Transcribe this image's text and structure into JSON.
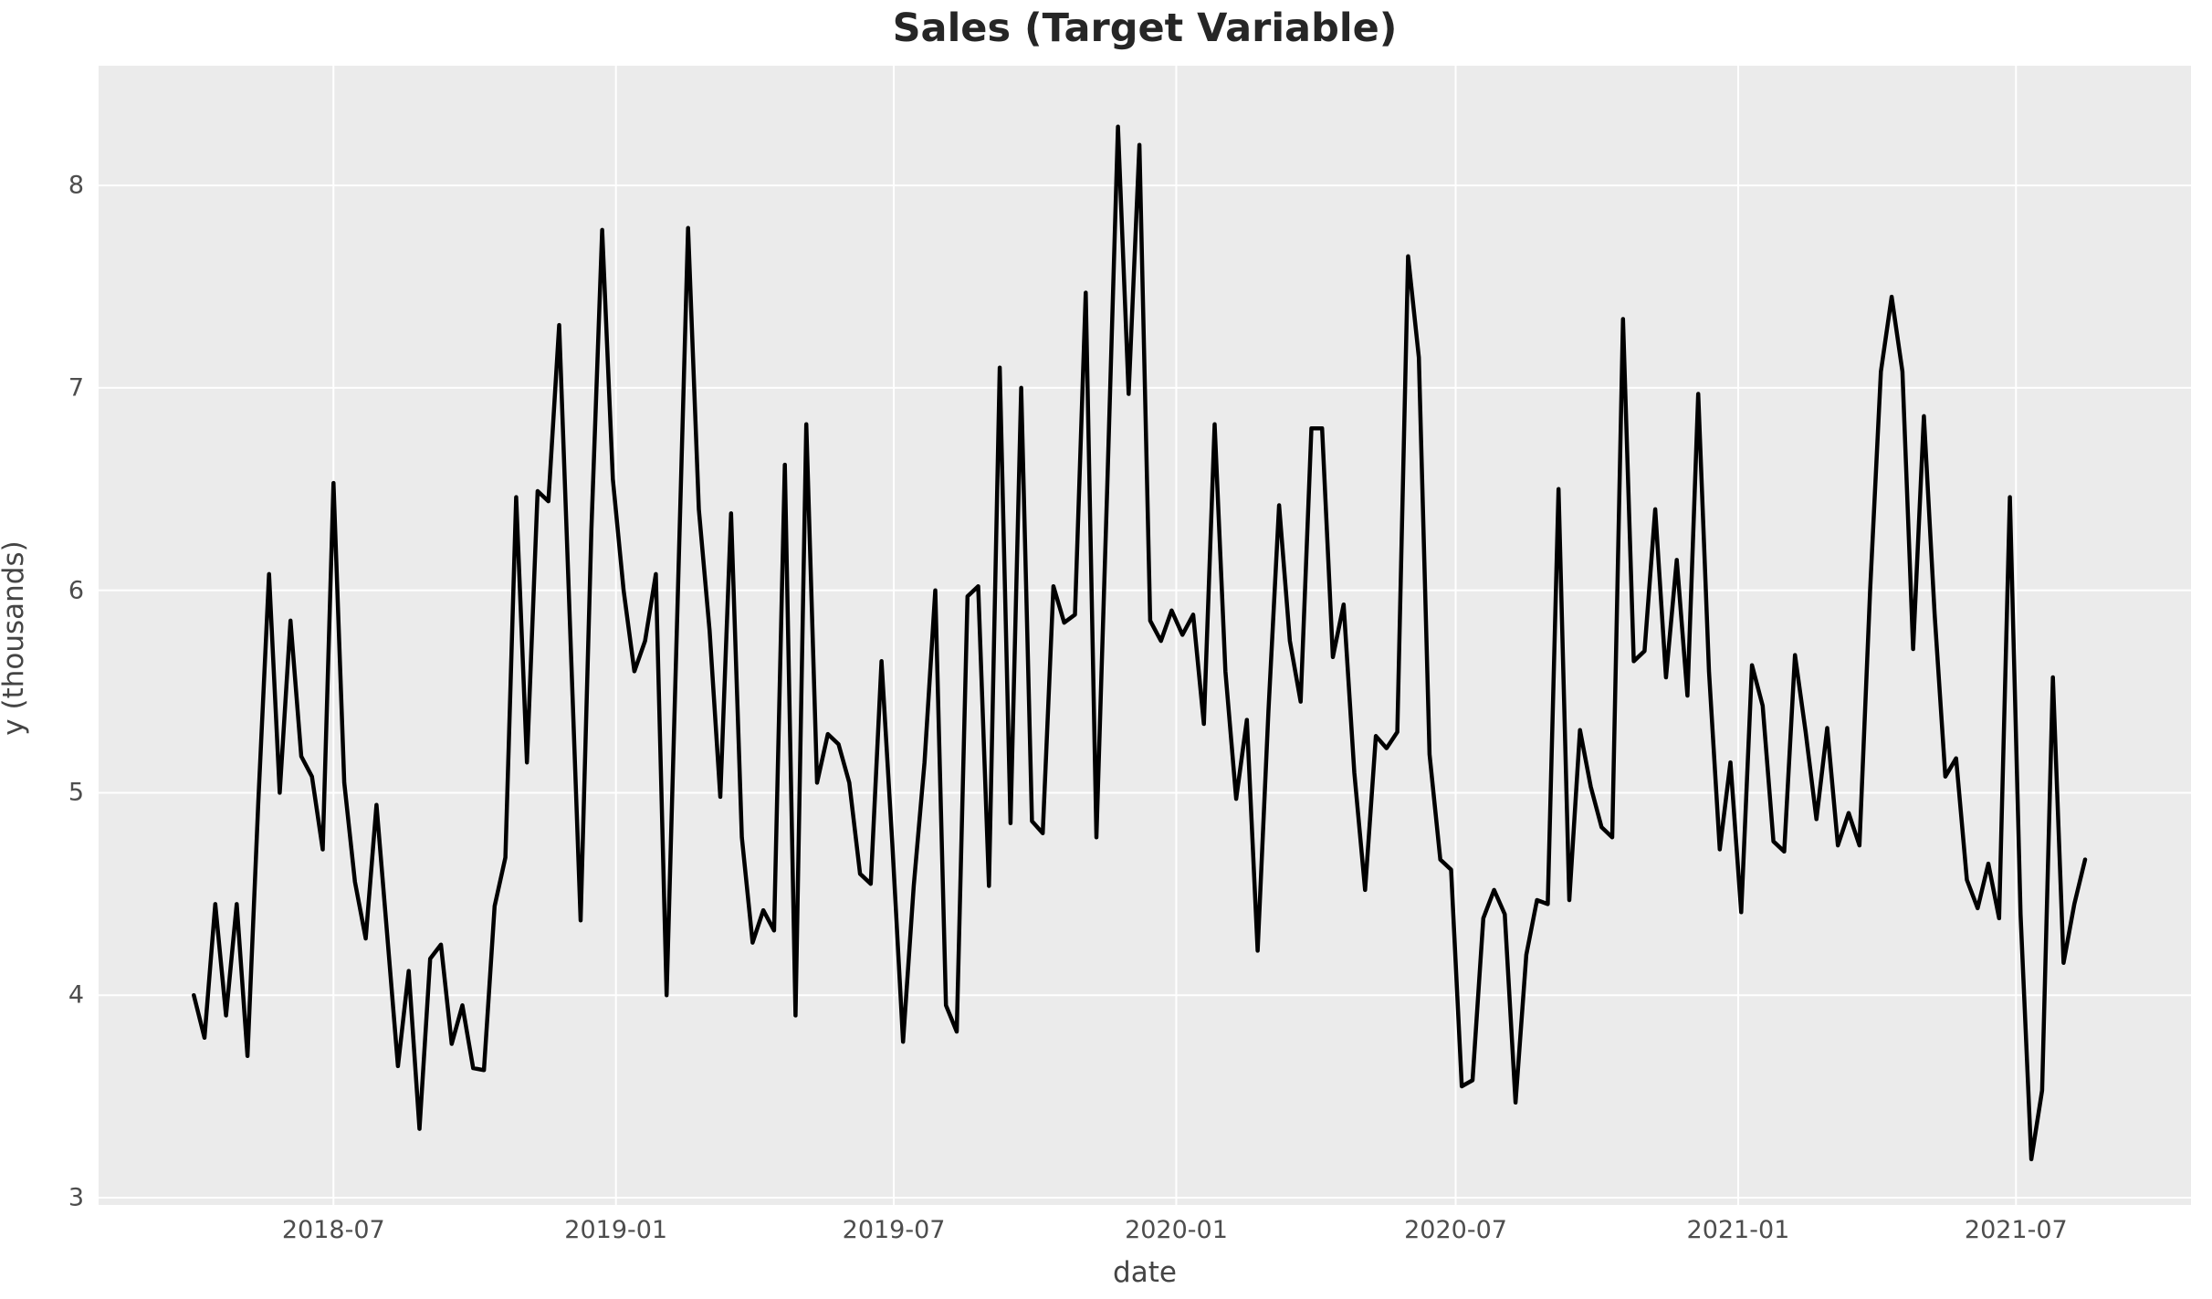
{
  "figure": {
    "background_color": "#ffffff",
    "text_color": "#4d4d4d",
    "axis_label_color": "#444444",
    "title_color": "#262626"
  },
  "chart_data": {
    "type": "line",
    "title": "Sales (Target Variable)",
    "xlabel": "date",
    "ylabel": "y (thousands)",
    "grid": true,
    "legend": false,
    "plot_background": "#ebebeb",
    "gridline_color": "#ffffff",
    "line_color": "#000000",
    "xlim": [
      "2018-01-29",
      "2021-10-23"
    ],
    "ylim": [
      2.964,
      8.591
    ],
    "x_tick_dates": [
      "2018-07-01",
      "2019-01-01",
      "2019-07-01",
      "2020-01-01",
      "2020-07-01",
      "2021-01-01",
      "2021-07-01"
    ],
    "x_tick_labels": [
      "2018-07",
      "2019-01",
      "2019-07",
      "2020-01",
      "2020-07",
      "2021-01",
      "2021-07"
    ],
    "y_ticks": [
      3,
      4,
      5,
      6,
      7,
      8
    ],
    "y_tick_labels": [
      "3",
      "4",
      "5",
      "6",
      "7",
      "8"
    ],
    "x_start_date": "2018-04-01",
    "x_step_days": 7,
    "n_points": 177,
    "values": [
      4.0,
      3.79,
      4.45,
      3.9,
      4.45,
      3.7,
      4.95,
      6.08,
      5.0,
      5.85,
      5.18,
      5.08,
      4.72,
      6.53,
      5.05,
      4.56,
      4.28,
      4.94,
      4.3,
      3.65,
      4.12,
      3.34,
      4.18,
      4.25,
      3.76,
      3.95,
      3.64,
      3.63,
      4.44,
      4.68,
      6.46,
      5.15,
      6.49,
      6.44,
      7.31,
      5.85,
      4.37,
      6.3,
      7.78,
      6.55,
      6.0,
      5.6,
      5.75,
      6.08,
      4.0,
      5.9,
      7.79,
      6.4,
      5.8,
      4.98,
      6.38,
      4.78,
      4.26,
      4.42,
      4.32,
      6.62,
      3.9,
      6.82,
      5.05,
      5.29,
      5.24,
      5.05,
      4.6,
      4.55,
      5.65,
      4.75,
      3.77,
      4.54,
      5.15,
      6.0,
      3.95,
      3.82,
      5.97,
      6.02,
      4.54,
      7.1,
      4.85,
      7.0,
      4.86,
      4.8,
      6.02,
      5.84,
      5.88,
      7.47,
      4.78,
      6.5,
      8.29,
      6.97,
      8.2,
      5.85,
      5.75,
      5.9,
      5.78,
      5.88,
      5.34,
      6.82,
      5.6,
      4.97,
      5.36,
      4.22,
      5.4,
      6.42,
      5.75,
      5.45,
      6.8,
      6.8,
      5.67,
      5.93,
      5.1,
      4.52,
      5.28,
      5.22,
      5.3,
      7.65,
      7.15,
      5.19,
      4.67,
      4.62,
      3.55,
      3.58,
      4.38,
      4.52,
      4.4,
      3.47,
      4.2,
      4.47,
      4.45,
      6.5,
      4.47,
      5.31,
      5.03,
      4.83,
      4.78,
      7.34,
      5.65,
      5.7,
      6.4,
      5.57,
      6.15,
      5.48,
      6.97,
      5.6,
      4.72,
      5.15,
      4.41,
      5.63,
      5.43,
      4.76,
      4.71,
      5.68,
      5.3,
      4.87,
      5.32,
      4.74,
      4.9,
      4.74,
      6.0,
      7.08,
      7.45,
      7.08,
      5.71,
      6.86,
      5.88,
      5.08,
      5.17,
      4.57,
      4.43,
      4.65,
      4.38,
      6.46,
      4.4,
      3.19,
      3.53,
      5.57,
      4.16,
      4.45,
      4.67
    ]
  }
}
